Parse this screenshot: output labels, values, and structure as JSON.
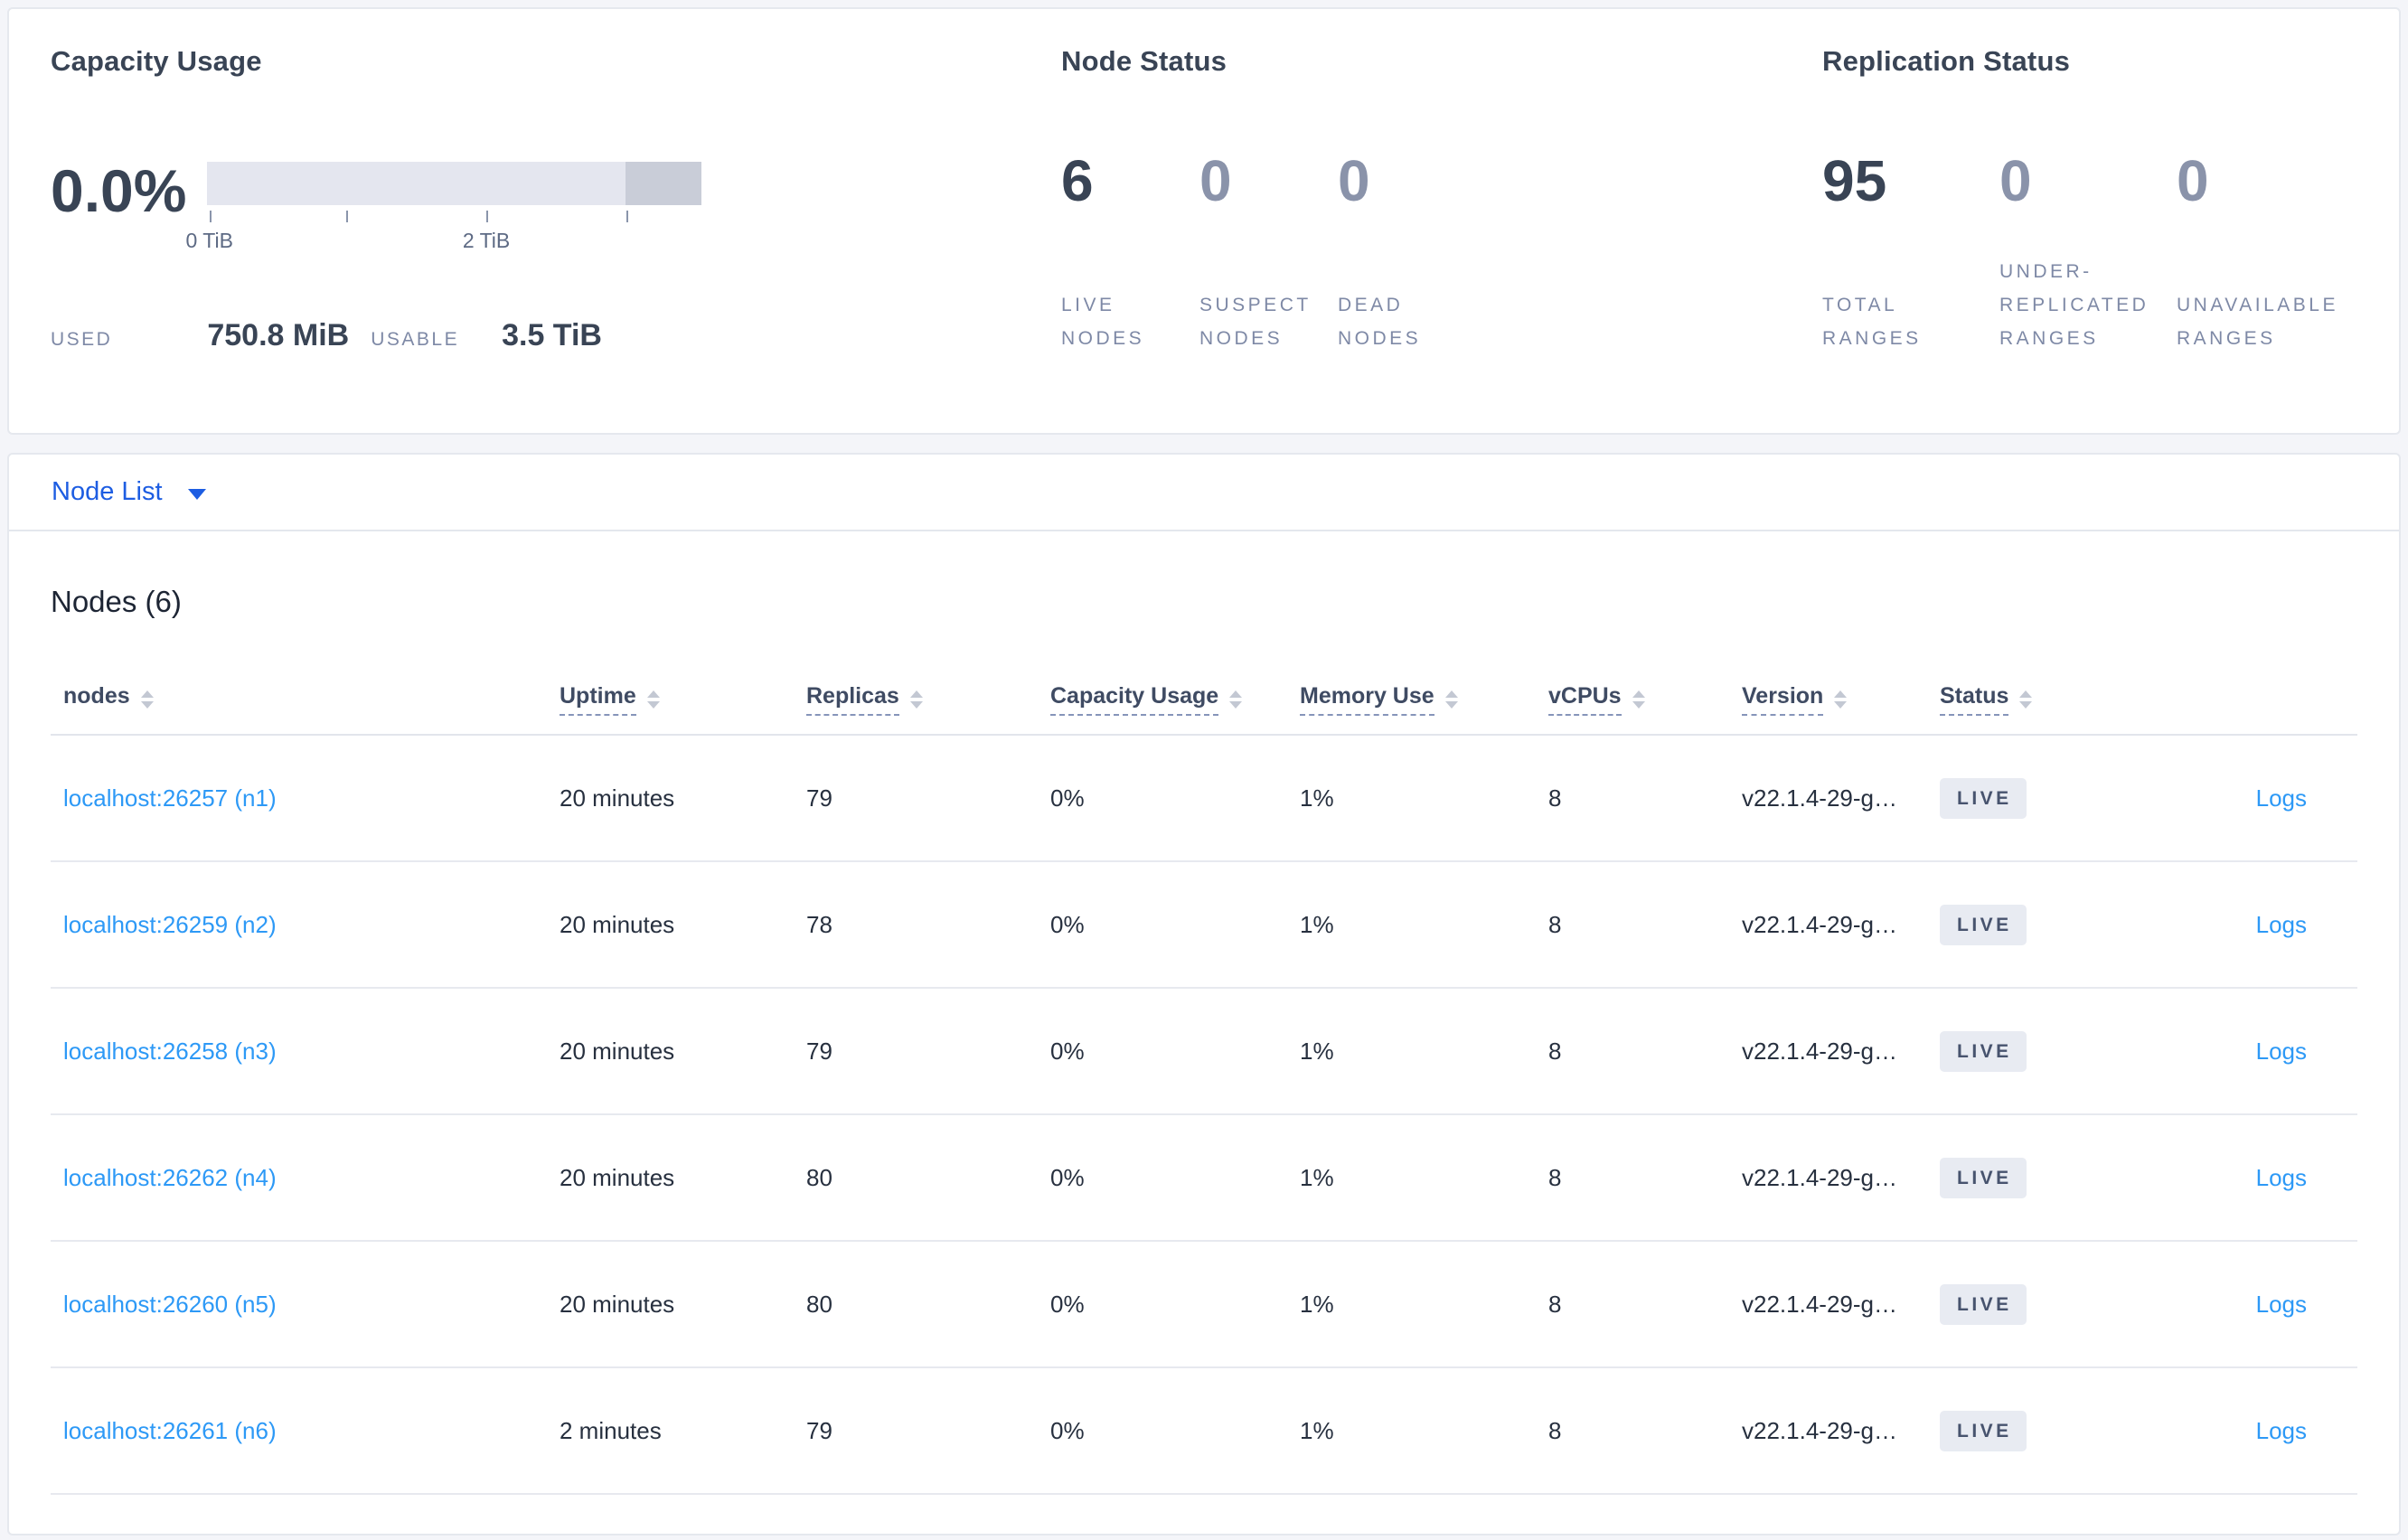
{
  "overview": {
    "capacity": {
      "title": "Capacity Usage",
      "percent": "0.0%",
      "tick_labels": [
        "0 TiB",
        "2 TiB"
      ],
      "used_label": "USED",
      "used_value": "750.8 MiB",
      "usable_label": "USABLE",
      "usable_value": "3.5 TiB"
    },
    "node_status": {
      "title": "Node Status",
      "stats": [
        {
          "value": "6",
          "label": "LIVE NODES"
        },
        {
          "value": "0",
          "label": "SUSPECT NODES"
        },
        {
          "value": "0",
          "label": "DEAD NODES"
        }
      ]
    },
    "replication_status": {
      "title": "Replication Status",
      "stats": [
        {
          "value": "95",
          "label": "TOTAL RANGES"
        },
        {
          "value": "0",
          "label": "UNDER-REPLICATED RANGES"
        },
        {
          "value": "0",
          "label": "UNAVAILABLE RANGES"
        }
      ]
    }
  },
  "node_list": {
    "dropdown_label": "Node List",
    "heading": "Nodes (6)",
    "columns": [
      "nodes",
      "Uptime",
      "Replicas",
      "Capacity Usage",
      "Memory Use",
      "vCPUs",
      "Version",
      "Status"
    ],
    "rows": [
      {
        "node": "localhost:26257 (n1)",
        "uptime": "20 minutes",
        "replicas": "79",
        "capacity": "0%",
        "memory": "1%",
        "vcpus": "8",
        "version": "v22.1.4-29-g…",
        "status": "LIVE",
        "logs": "Logs"
      },
      {
        "node": "localhost:26259 (n2)",
        "uptime": "20 minutes",
        "replicas": "78",
        "capacity": "0%",
        "memory": "1%",
        "vcpus": "8",
        "version": "v22.1.4-29-g…",
        "status": "LIVE",
        "logs": "Logs"
      },
      {
        "node": "localhost:26258 (n3)",
        "uptime": "20 minutes",
        "replicas": "79",
        "capacity": "0%",
        "memory": "1%",
        "vcpus": "8",
        "version": "v22.1.4-29-g…",
        "status": "LIVE",
        "logs": "Logs"
      },
      {
        "node": "localhost:26262 (n4)",
        "uptime": "20 minutes",
        "replicas": "80",
        "capacity": "0%",
        "memory": "1%",
        "vcpus": "8",
        "version": "v22.1.4-29-g…",
        "status": "LIVE",
        "logs": "Logs"
      },
      {
        "node": "localhost:26260 (n5)",
        "uptime": "20 minutes",
        "replicas": "80",
        "capacity": "0%",
        "memory": "1%",
        "vcpus": "8",
        "version": "v22.1.4-29-g…",
        "status": "LIVE",
        "logs": "Logs"
      },
      {
        "node": "localhost:26261 (n6)",
        "uptime": "2 minutes",
        "replicas": "79",
        "capacity": "0%",
        "memory": "1%",
        "vcpus": "8",
        "version": "v22.1.4-29-g…",
        "status": "LIVE",
        "logs": "Logs"
      }
    ]
  },
  "colors": {
    "primary_blue": "#1d5de2",
    "link_blue": "#2d99f6",
    "heading_slate": "#394455",
    "muted_stat_value": "#8a93aa",
    "caps_label": "#7e89a6",
    "badge_bg": "#e8ebf2",
    "badge_text": "#47536e",
    "bar_light": "#e4e6ef",
    "bar_dark": "#c9cdd8",
    "page_bg": "#f4f5f9"
  }
}
